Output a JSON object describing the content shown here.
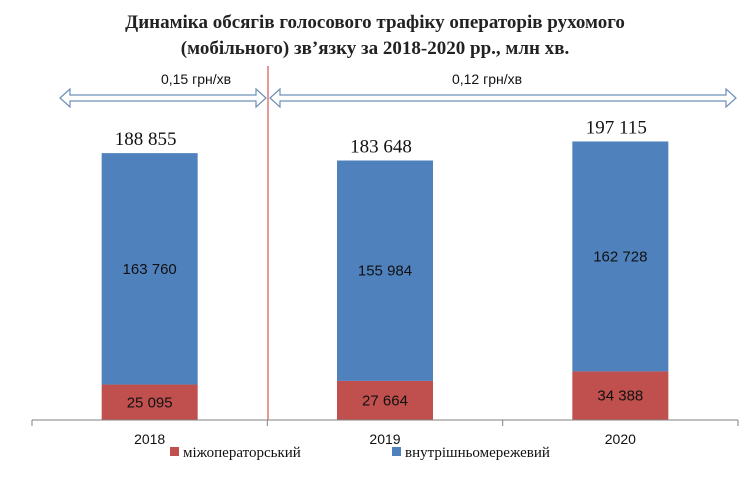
{
  "chart_data": {
    "type": "bar",
    "stacked": true,
    "title_lines": [
      "Динаміка обсягів голосового трафіку операторів рухомого",
      "(мобільного) зв’язку за 2018-2020 рр., млн хв."
    ],
    "categories": [
      "2018",
      "2019",
      "2020"
    ],
    "series": [
      {
        "name": "міжоператорський",
        "color": "#c0504d",
        "values": [
          25095,
          27664,
          34388
        ],
        "labels": [
          "25 095",
          "27 664",
          "34 388"
        ]
      },
      {
        "name": "внутрішньомережевий",
        "color": "#4f81bd",
        "values": [
          163760,
          155984,
          162728
        ],
        "labels": [
          "163 760",
          "155 984",
          "162 728"
        ]
      }
    ],
    "totals": [
      188855,
      183648,
      197115
    ],
    "total_labels": [
      "188 855",
      "183 648",
      "197 115"
    ],
    "ylim": [
      0,
      230000
    ],
    "legend_position": "bottom",
    "price_periods": [
      {
        "label": "0,15 грн/хв",
        "from": "2018",
        "to": "2018"
      },
      {
        "label": "0,12 грн/хв",
        "from": "2019",
        "to": "2020"
      }
    ],
    "divider_color": "#d9534f"
  }
}
